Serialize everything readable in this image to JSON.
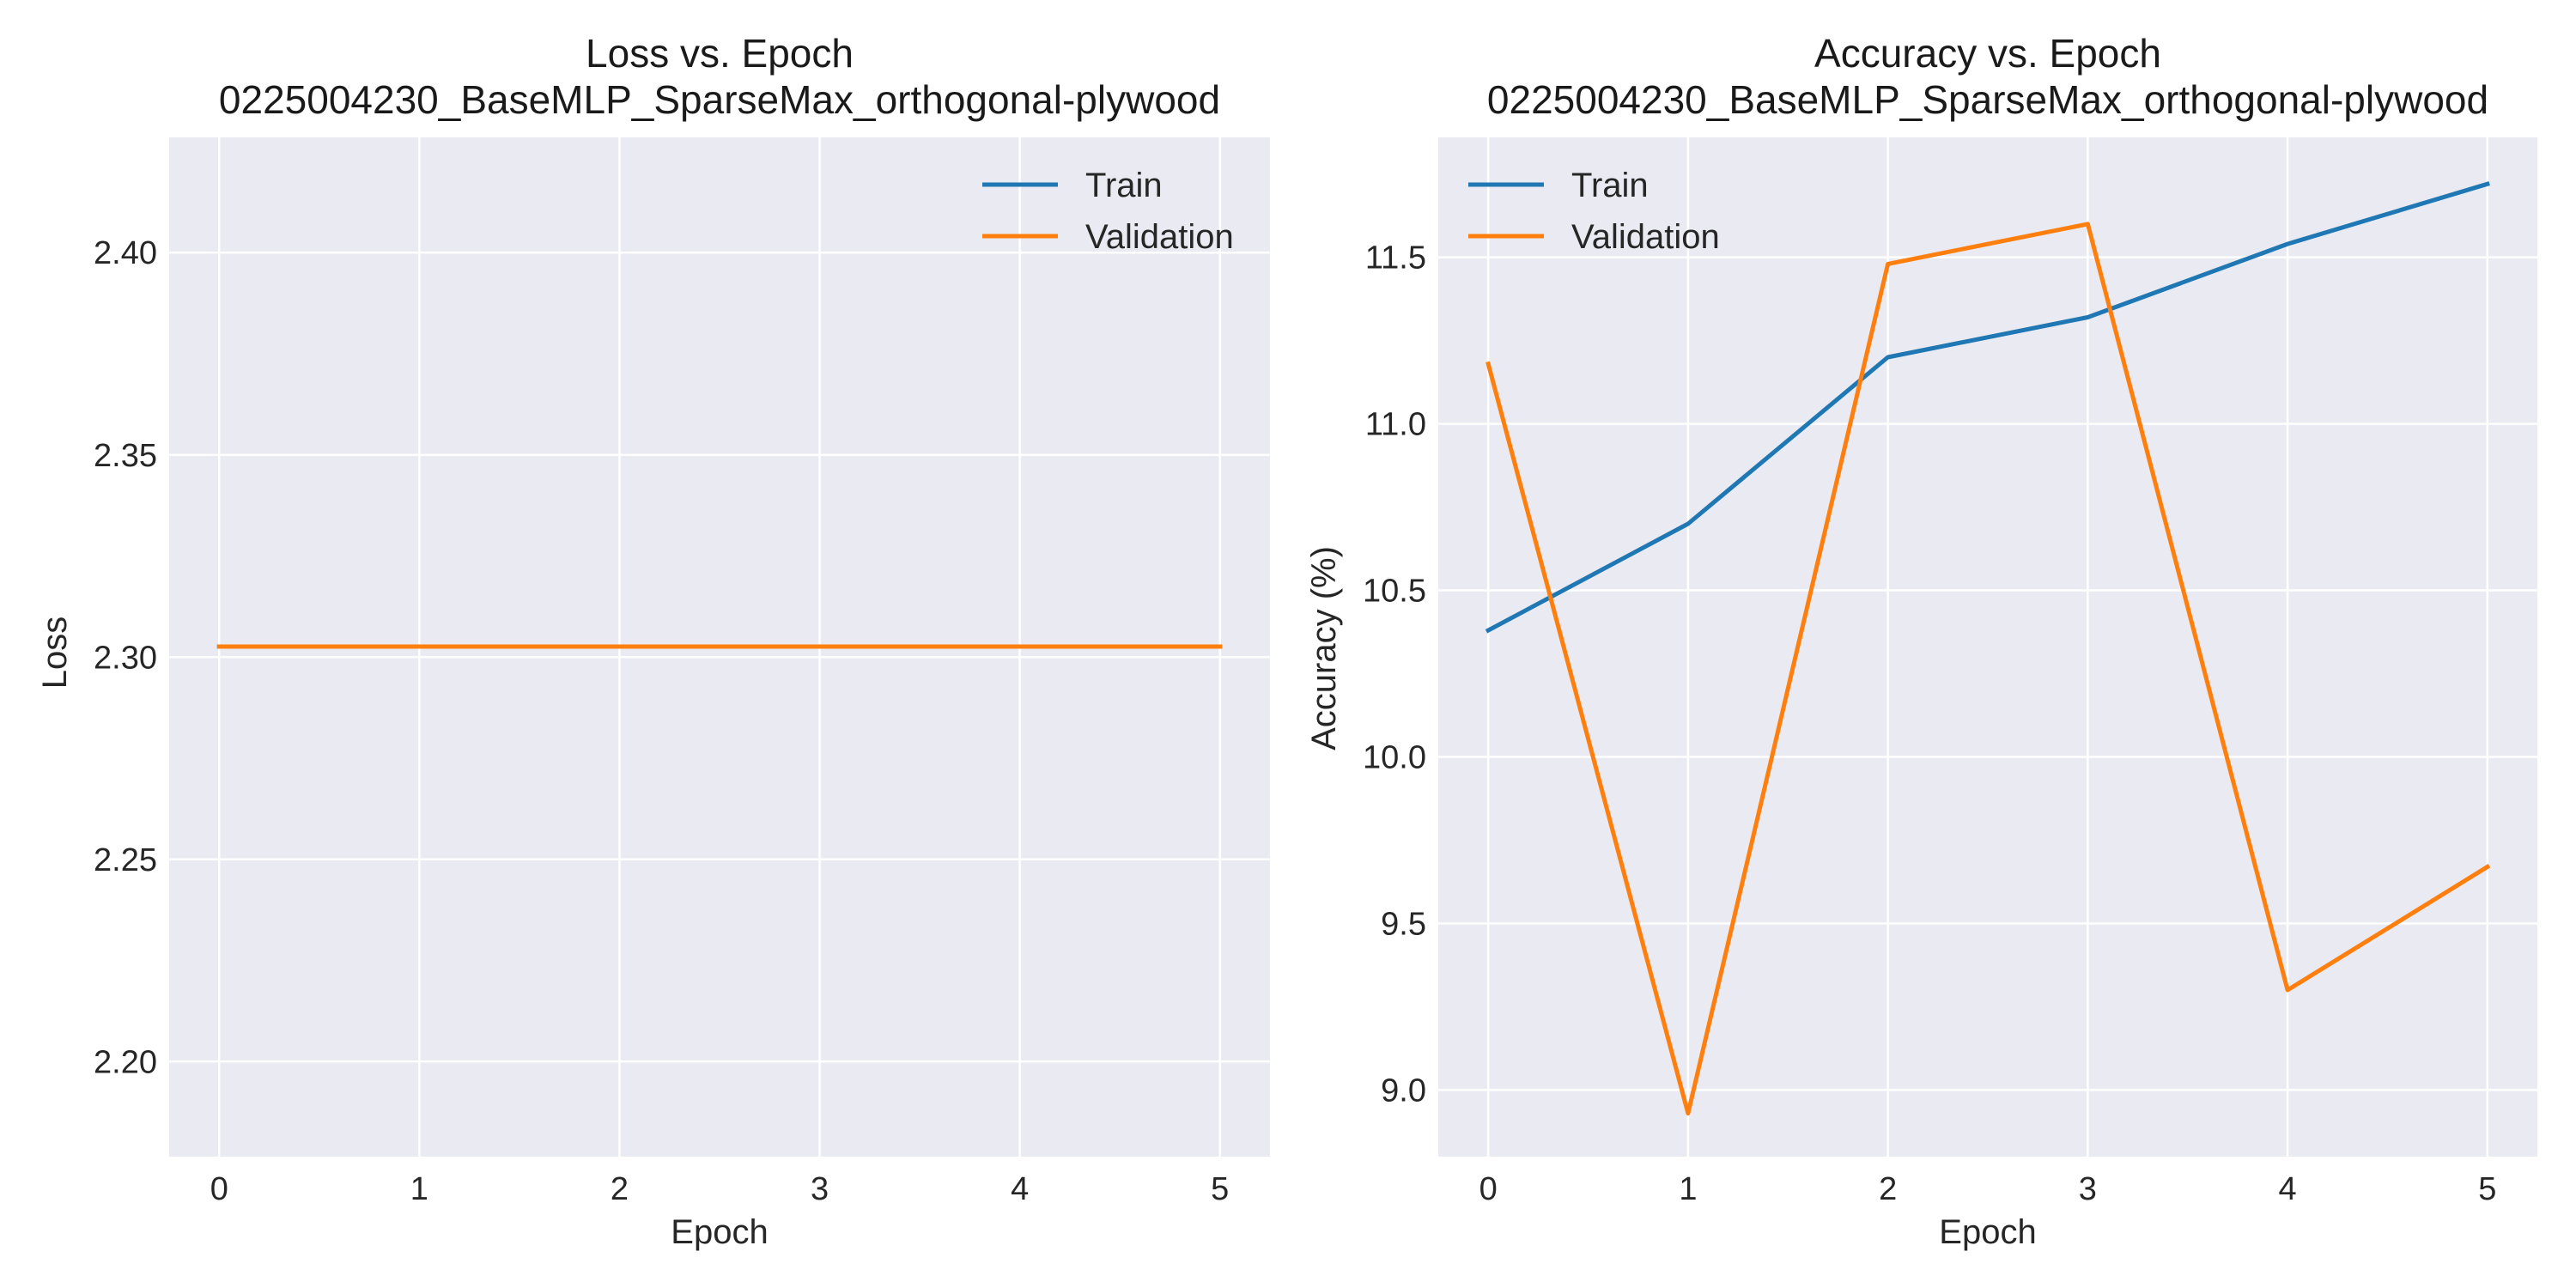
{
  "colors": {
    "train": "#1f77b4",
    "validation": "#ff7f0e",
    "plot_bg": "#eaeaf2",
    "grid": "#ffffff"
  },
  "chart_data": [
    {
      "type": "line",
      "title": "Loss vs. Epoch",
      "subtitle": "0225004230_BaseMLP_SparseMax_orthogonal-plywood",
      "xlabel": "Epoch",
      "ylabel": "Loss",
      "xlim": [
        -0.25,
        5.25
      ],
      "ylim": [
        2.1765,
        2.4285
      ],
      "xticks": [
        "0",
        "1",
        "2",
        "3",
        "4",
        "5"
      ],
      "yticks": [
        "2.20",
        "2.25",
        "2.30",
        "2.35",
        "2.40"
      ],
      "ytick_values": [
        2.2,
        2.25,
        2.3,
        2.35,
        2.4
      ],
      "grid": true,
      "legend_position": "top-right",
      "x": [
        0,
        1,
        2,
        3,
        4,
        5
      ],
      "series": [
        {
          "name": "Train",
          "color": "#1f77b4",
          "values": [
            2.3026,
            2.3026,
            2.3026,
            2.3026,
            2.3026,
            2.3026
          ]
        },
        {
          "name": "Validation",
          "color": "#ff7f0e",
          "values": [
            2.3026,
            2.3026,
            2.3026,
            2.3026,
            2.3026,
            2.3026
          ]
        }
      ]
    },
    {
      "type": "line",
      "title": "Accuracy vs. Epoch",
      "subtitle": "0225004230_BaseMLP_SparseMax_orthogonal-plywood",
      "xlabel": "Epoch",
      "ylabel": "Accuracy (%)",
      "xlim": [
        -0.25,
        5.25
      ],
      "ylim": [
        8.8,
        11.86
      ],
      "xticks": [
        "0",
        "1",
        "2",
        "3",
        "4",
        "5"
      ],
      "yticks": [
        "9.0",
        "9.5",
        "10.0",
        "10.5",
        "11.0",
        "11.5"
      ],
      "ytick_values": [
        9.0,
        9.5,
        10.0,
        10.5,
        11.0,
        11.5
      ],
      "grid": true,
      "legend_position": "top-left",
      "x": [
        0,
        1,
        2,
        3,
        4,
        5
      ],
      "series": [
        {
          "name": "Train",
          "color": "#1f77b4",
          "values": [
            10.38,
            10.7,
            11.2,
            11.32,
            11.54,
            11.72
          ]
        },
        {
          "name": "Validation",
          "color": "#ff7f0e",
          "values": [
            11.18,
            8.93,
            11.48,
            11.6,
            9.3,
            9.67
          ]
        }
      ]
    }
  ]
}
